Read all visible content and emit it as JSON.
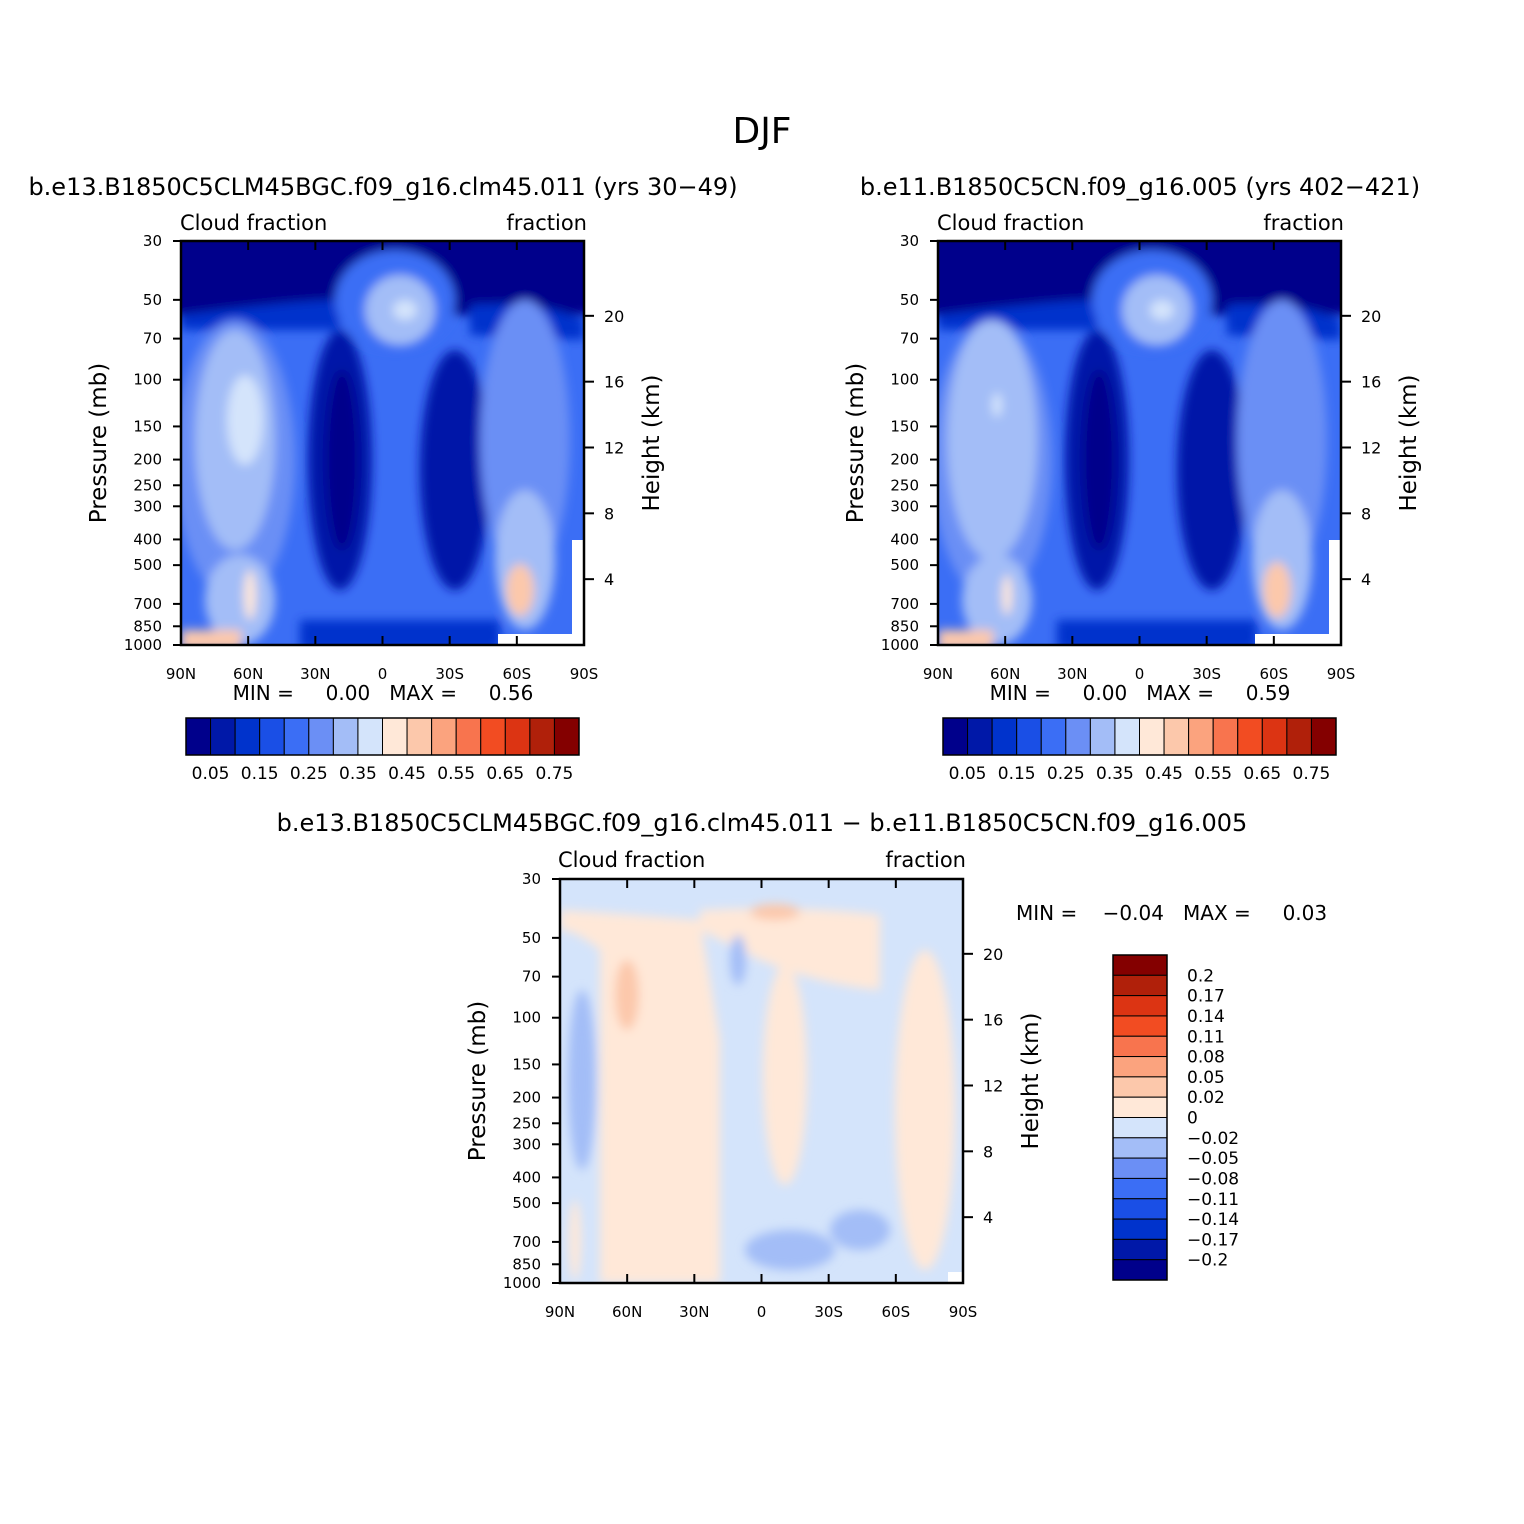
{
  "figure_title": "DJF",
  "colors": {
    "abs_scale": [
      "#00008b",
      "#0018a8",
      "#0033cc",
      "#1a4fe6",
      "#3b6ef5",
      "#6b8ff5",
      "#a3bdf7",
      "#d4e4fb",
      "#ffe8d8",
      "#fcc8ab",
      "#fba37e",
      "#f8744e",
      "#f24c22",
      "#dc3413",
      "#b0200a",
      "#840000"
    ],
    "diff_scale": [
      "#00008b",
      "#0018a8",
      "#0033cc",
      "#1a4fe6",
      "#3b6ef5",
      "#6b8ff5",
      "#a3bdf7",
      "#d4e4fb",
      "#ffe8d8",
      "#fcc8ab",
      "#fba37e",
      "#f8744e",
      "#f24c22",
      "#dc3413",
      "#b0200a",
      "#840000"
    ]
  },
  "panels": [
    {
      "title": "b.e13.B1850C5CLM45BGC.f09_g16.clm45.011 (yrs 30−49)",
      "left_label": "Cloud fraction",
      "right_label": "fraction",
      "ylabel": "Pressure (mb)",
      "y2label": "Height (km)",
      "minmax_text": "MIN =     0.00   MAX =     0.56"
    },
    {
      "title": "b.e11.B1850C5CN.f09_g16.005 (yrs 402−421)",
      "left_label": "Cloud fraction",
      "right_label": "fraction",
      "ylabel": "Pressure (mb)",
      "y2label": "Height (km)",
      "minmax_text": "MIN =     0.00   MAX =     0.59"
    },
    {
      "title": "b.e13.B1850C5CLM45BGC.f09_g16.clm45.011 − b.e11.B1850C5CN.f09_g16.005",
      "left_label": "Cloud fraction",
      "right_label": "fraction",
      "ylabel": "Pressure (mb)",
      "y2label": "Height (km)",
      "minmax_text": "MIN =    −0.04   MAX =     0.03"
    }
  ],
  "chart_data": [
    {
      "type": "heatmap",
      "title": "b.e13.B1850C5CLM45BGC.f09_g16.clm45.011 (yrs 30−49)",
      "xlabel": "",
      "ylabel": "Pressure (mb)",
      "y2label": "Height (km)",
      "x_ticks": [
        "90N",
        "60N",
        "30N",
        "0",
        "30S",
        "60S",
        "90S"
      ],
      "y_ticks": [
        "30",
        "50",
        "70",
        "100",
        "150",
        "200",
        "250",
        "300",
        "400",
        "500",
        "700",
        "850",
        "1000"
      ],
      "y2_ticks": [
        "20",
        "16",
        "12",
        "8",
        "4"
      ],
      "colorbar_labels": [
        "0.05",
        "0.15",
        "0.25",
        "0.35",
        "0.45",
        "0.55",
        "0.65",
        "0.75"
      ],
      "min": 0.0,
      "max": 0.56
    },
    {
      "type": "heatmap",
      "title": "b.e11.B1850C5CN.f09_g16.005 (yrs 402−421)",
      "xlabel": "",
      "ylabel": "Pressure (mb)",
      "y2label": "Height (km)",
      "x_ticks": [
        "90N",
        "60N",
        "30N",
        "0",
        "30S",
        "60S",
        "90S"
      ],
      "y_ticks": [
        "30",
        "50",
        "70",
        "100",
        "150",
        "200",
        "250",
        "300",
        "400",
        "500",
        "700",
        "850",
        "1000"
      ],
      "y2_ticks": [
        "20",
        "16",
        "12",
        "8",
        "4"
      ],
      "colorbar_labels": [
        "0.05",
        "0.15",
        "0.25",
        "0.35",
        "0.45",
        "0.55",
        "0.65",
        "0.75"
      ],
      "min": 0.0,
      "max": 0.59
    },
    {
      "type": "heatmap",
      "title": "b.e13.B1850C5CLM45BGC.f09_g16.clm45.011 − b.e11.B1850C5CN.f09_g16.005",
      "xlabel": "",
      "ylabel": "Pressure (mb)",
      "y2label": "Height (km)",
      "x_ticks": [
        "90N",
        "60N",
        "30N",
        "0",
        "30S",
        "60S",
        "90S"
      ],
      "y_ticks": [
        "30",
        "50",
        "70",
        "100",
        "150",
        "200",
        "250",
        "300",
        "400",
        "500",
        "700",
        "850",
        "1000"
      ],
      "y2_ticks": [
        "20",
        "16",
        "12",
        "8",
        "4"
      ],
      "colorbar_labels": [
        "0.2",
        "0.17",
        "0.14",
        "0.11",
        "0.08",
        "0.05",
        "0.02",
        "0",
        "−0.02",
        "−0.05",
        "−0.08",
        "−0.11",
        "−0.14",
        "−0.17",
        "−0.2"
      ],
      "min": -0.04,
      "max": 0.03
    }
  ]
}
